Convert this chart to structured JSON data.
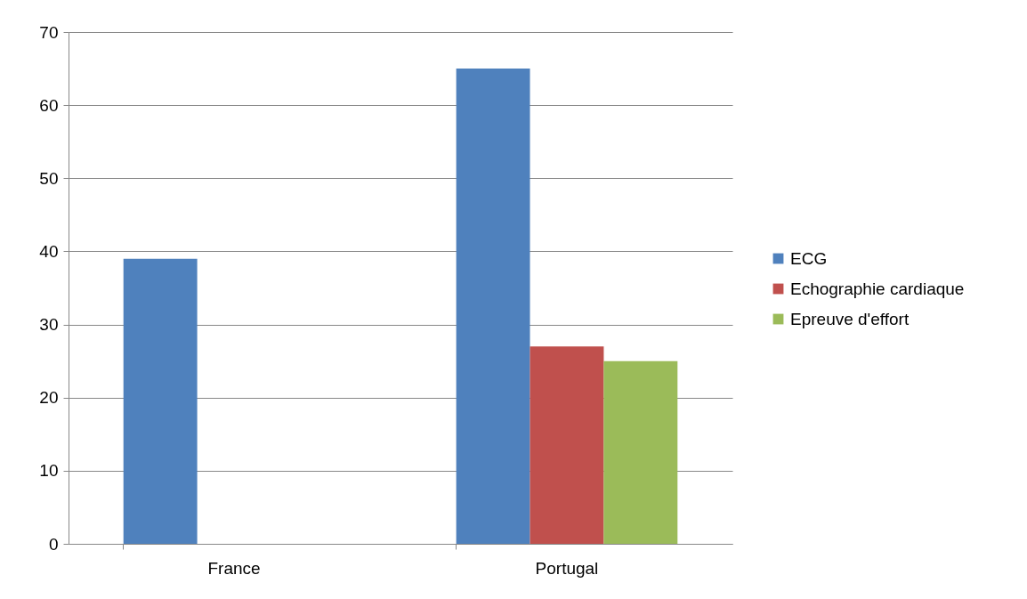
{
  "chart_data": {
    "type": "bar",
    "categories": [
      "France",
      "Portugal"
    ],
    "series": [
      {
        "name": "ECG",
        "color": "#4f81bd",
        "values": [
          39,
          65
        ]
      },
      {
        "name": "Echographie cardiaque",
        "color": "#c0504d",
        "values": [
          null,
          27
        ]
      },
      {
        "name": "Epreuve d'effort",
        "color": "#9bbb59",
        "values": [
          null,
          25
        ]
      }
    ],
    "ylim": [
      0,
      70
    ],
    "yticks": [
      0,
      10,
      20,
      30,
      40,
      50,
      60,
      70
    ],
    "grid": "y",
    "legend": "right"
  }
}
